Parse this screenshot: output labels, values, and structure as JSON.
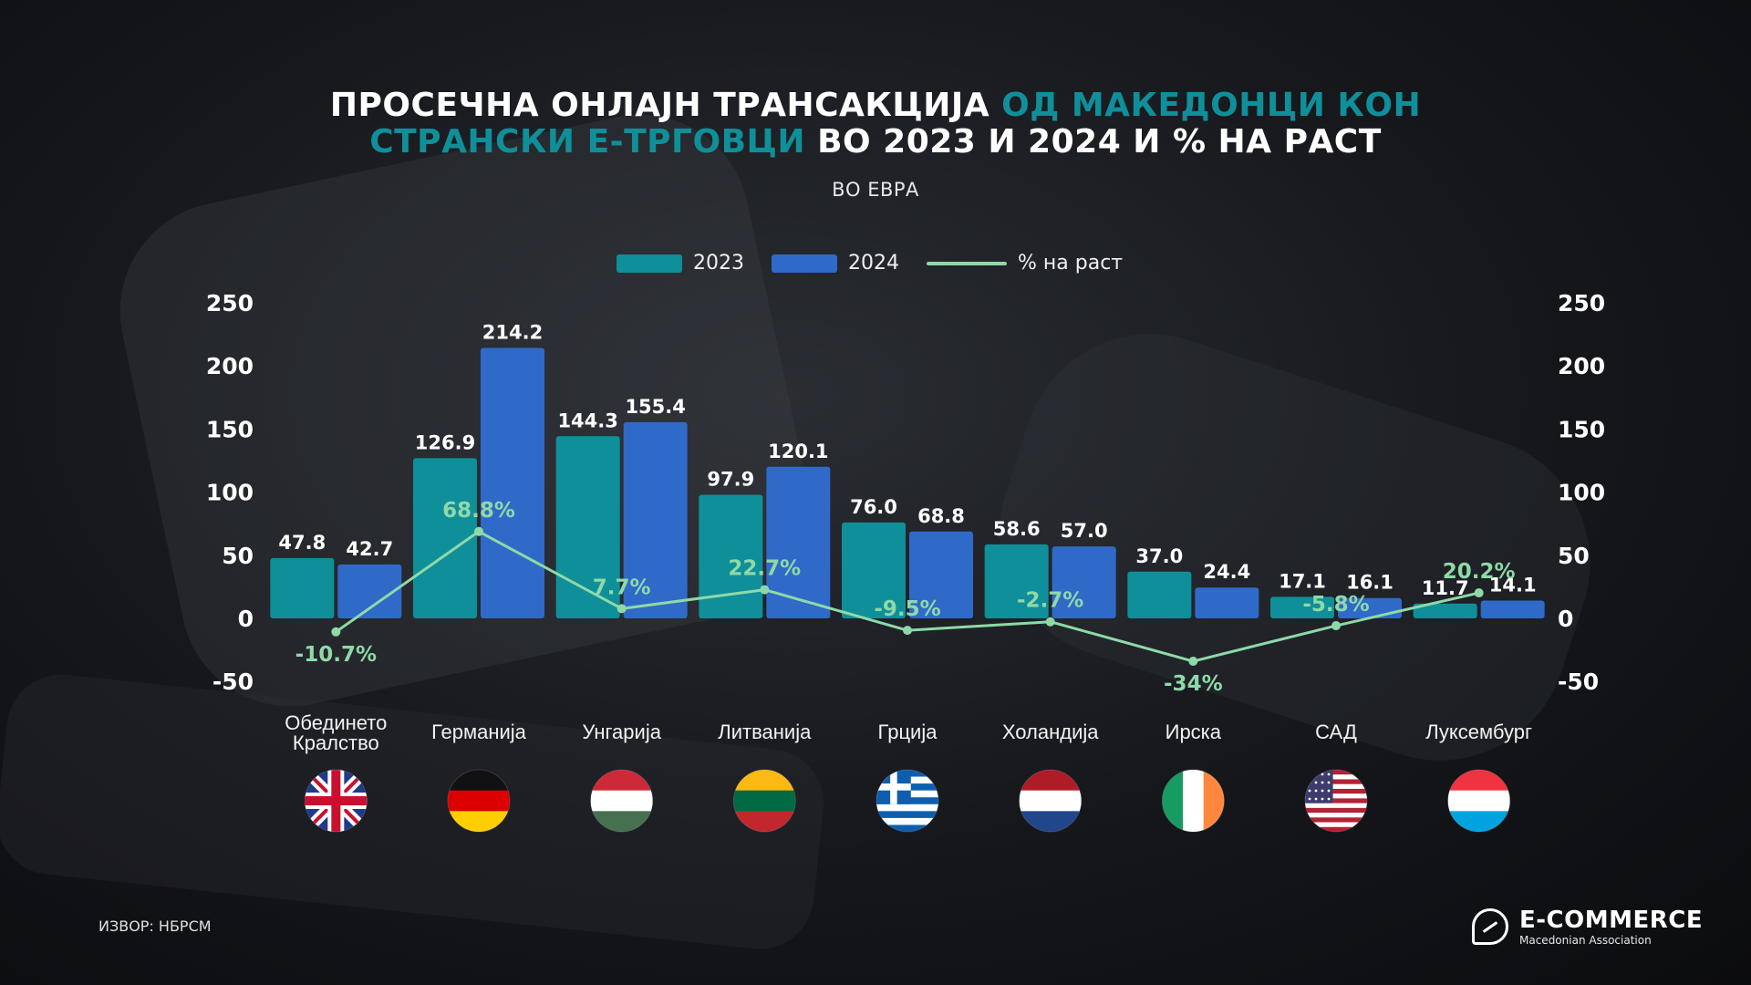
{
  "title": {
    "line1_plain": "ПРОСЕЧНА ОНЛАЈН ТРАНСАКЦИЈА ",
    "line1_highlight": "ОД МАКЕДОНЦИ КОН",
    "line2_highlight": "СТРАНСКИ Е-ТРГОВЦИ",
    "line2_plain": " ВО 2023 И 2024 И % НА РАСТ"
  },
  "subtitle": "ВО ЕВРА",
  "legend": {
    "s2023": "2023",
    "s2024": "2024",
    "growth": "% на раст"
  },
  "colors": {
    "s2023": "#0f8f9a",
    "s2024": "#2f6ac8",
    "growth": "#8fd9a8",
    "highlight": "#0f8f9a"
  },
  "chart_data": {
    "type": "bar",
    "title": "ПРОСЕЧНА ОНЛАЈН ТРАНСАКЦИЈА ОД МАКЕДОНЦИ КОН СТРАНСКИ Е-ТРГОВЦИ ВО 2023 И 2024 И % НА РАСТ",
    "subtitle": "ВО ЕВРА",
    "categories": [
      "Обединето Кралство",
      "Германија",
      "Унгарија",
      "Литванија",
      "Грција",
      "Холандија",
      "Ирска",
      "САД",
      "Луксембург"
    ],
    "series": [
      {
        "name": "2023",
        "type": "bar",
        "values": [
          47.8,
          126.9,
          144.3,
          97.9,
          76.0,
          58.6,
          37.0,
          17.1,
          11.7
        ],
        "labels": [
          "47.8",
          "126.9",
          "144.3",
          "97.9",
          "76.0",
          "58.6",
          "37.0",
          "17.1",
          "11.7"
        ]
      },
      {
        "name": "2024",
        "type": "bar",
        "values": [
          42.7,
          214.2,
          155.4,
          120.1,
          68.8,
          57.0,
          24.4,
          16.1,
          14.1
        ],
        "labels": [
          "42.7",
          "214.2",
          "155.4",
          "120.1",
          "68.8",
          "57.0",
          "24.4",
          "16.1",
          "14.1"
        ]
      },
      {
        "name": "% на раст",
        "type": "line",
        "values": [
          -10.7,
          68.8,
          7.7,
          22.7,
          -9.5,
          -2.7,
          -34,
          -5.8,
          20.2
        ],
        "labels": [
          "-10.7%",
          "68.8%",
          "7.7%",
          "22.7%",
          "-9.5%",
          "-2.7%",
          "-34%",
          "-5.8%",
          "20.2%"
        ]
      }
    ],
    "yticks": [
      "250",
      "200",
      "150",
      "100",
      "50",
      "0",
      "-50"
    ],
    "ylim": [
      -50,
      250
    ],
    "dual_axis": true,
    "legend_position": "top-center",
    "grid": false
  },
  "category_lines": [
    [
      "Обединето",
      "Кралство"
    ],
    [
      "Германија"
    ],
    [
      "Унгарија"
    ],
    [
      "Литванија"
    ],
    [
      "Грција"
    ],
    [
      "Холандија"
    ],
    [
      "Ирска"
    ],
    [
      "САД"
    ],
    [
      "Луксембург"
    ]
  ],
  "flags": [
    "uk-flag-icon",
    "germany-flag-icon",
    "hungary-flag-icon",
    "lithuania-flag-icon",
    "greece-flag-icon",
    "netherlands-flag-icon",
    "ireland-flag-icon",
    "usa-flag-icon",
    "luxembourg-flag-icon"
  ],
  "source": "ИЗВОР: НБРСМ",
  "logo": {
    "main": "E-COMMERCE",
    "sub": "Macedonian Association",
    "icon": "chat-growth-icon"
  }
}
